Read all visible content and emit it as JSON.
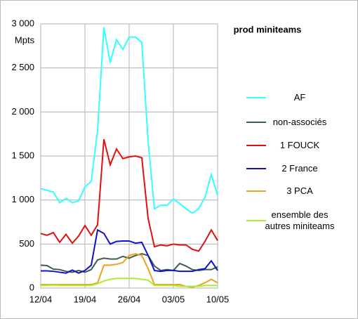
{
  "chart_data": {
    "type": "line",
    "title": "prod miniteams",
    "y_label": "Mpts",
    "categories": [
      "12/04",
      null,
      null,
      null,
      null,
      null,
      null,
      "19/04",
      null,
      null,
      null,
      null,
      null,
      null,
      "26/04",
      null,
      null,
      null,
      null,
      null,
      null,
      "03/05",
      null,
      null,
      null,
      null,
      null,
      null,
      "10/05"
    ],
    "ylim": [
      0,
      3000
    ],
    "yticks": [
      0,
      500,
      {
        "value": 1000,
        "label": "1 000"
      },
      {
        "value": 1500,
        "label": "1 500"
      },
      {
        "value": 2000,
        "label": "2 000"
      },
      {
        "value": 2500,
        "label": "2 500"
      },
      {
        "value": 3000,
        "label": "3 000"
      }
    ],
    "grid": true,
    "series": [
      {
        "name": "AF",
        "color": "#33ffff",
        "values": [
          1130,
          1110,
          1090,
          970,
          1020,
          970,
          990,
          1150,
          1210,
          1790,
          2960,
          2560,
          2820,
          2710,
          2850,
          2850,
          2790,
          1670,
          900,
          940,
          940,
          1010,
          960,
          900,
          850,
          900,
          1030,
          1290,
          1050
        ]
      },
      {
        "name": "non-associés",
        "color": "#3d5e4e",
        "values": [
          260,
          255,
          215,
          210,
          190,
          180,
          200,
          180,
          210,
          320,
          340,
          330,
          330,
          360,
          340,
          370,
          390,
          370,
          250,
          200,
          210,
          200,
          280,
          250,
          210,
          200,
          210,
          210,
          240
        ]
      },
      {
        "name": "1 FOUCK",
        "color": "#e01010",
        "values": [
          620,
          600,
          630,
          520,
          610,
          510,
          590,
          710,
          600,
          720,
          1690,
          1400,
          1580,
          1470,
          1490,
          1500,
          1480,
          790,
          470,
          490,
          480,
          500,
          490,
          490,
          440,
          420,
          530,
          660,
          540
        ]
      },
      {
        "name": "2 France",
        "color": "#1010d0",
        "values": [
          195,
          195,
          190,
          180,
          170,
          205,
          170,
          200,
          260,
          660,
          620,
          500,
          530,
          535,
          535,
          510,
          520,
          370,
          200,
          190,
          200,
          200,
          190,
          190,
          190,
          210,
          220,
          310,
          200
        ]
      },
      {
        "name": "3 PCA",
        "color": "#f0a020",
        "values": [
          40,
          40,
          40,
          40,
          40,
          40,
          40,
          40,
          40,
          60,
          260,
          260,
          270,
          290,
          370,
          390,
          370,
          220,
          40,
          40,
          40,
          40,
          40,
          20,
          10,
          30,
          60,
          100,
          60
        ]
      },
      {
        "name": "ensemble des autres miniteams",
        "color": "#aaee33",
        "values": [
          30,
          30,
          35,
          30,
          30,
          30,
          30,
          30,
          30,
          50,
          80,
          100,
          110,
          110,
          110,
          110,
          100,
          90,
          30,
          30,
          30,
          30,
          20,
          20,
          20,
          20,
          30,
          30,
          30
        ]
      }
    ]
  }
}
